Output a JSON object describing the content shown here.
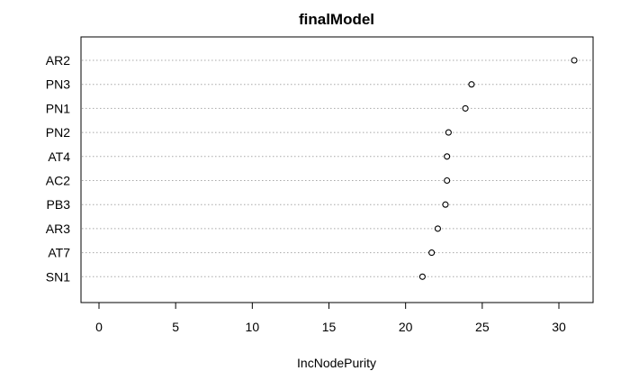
{
  "chart_data": {
    "type": "scatter",
    "title": "finalModel",
    "xlabel": "IncNodePurity",
    "ylabel": "",
    "categories": [
      "AR2",
      "PN3",
      "PN1",
      "PN2",
      "AT4",
      "AC2",
      "PB3",
      "AR3",
      "AT7",
      "SN1"
    ],
    "values": [
      31.0,
      24.3,
      23.9,
      22.8,
      22.7,
      22.7,
      22.6,
      22.1,
      21.7,
      21.1
    ],
    "xlim": [
      0,
      32
    ],
    "xticks": [
      "0",
      "5",
      "10",
      "15",
      "20",
      "25",
      "30"
    ],
    "grid": true,
    "point_style": "open-circle"
  }
}
